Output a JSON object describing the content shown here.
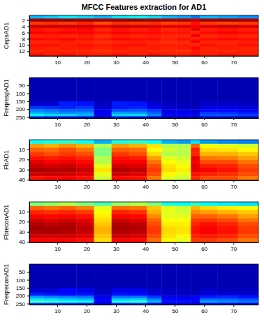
{
  "chart_data": [
    {
      "type": "heatmap",
      "title": "MFCC Features extraction for AD1",
      "ylabel": "CepsAD1",
      "color": "jet",
      "xlim": [
        0.5,
        78.5
      ],
      "xticks": [
        10,
        20,
        30,
        40,
        50,
        60,
        70
      ],
      "ylim": [
        0.5,
        13.5
      ],
      "yticks": [
        2,
        4,
        6,
        8,
        10,
        12
      ],
      "zlim": [
        0,
        1
      ],
      "x_edges": [
        0.5,
        5.5,
        10.5,
        16.5,
        22.5,
        28.5,
        34.5,
        40.5,
        45.5,
        50.5,
        55.5,
        58.5,
        64.5,
        71.5,
        78.5
      ],
      "y_edges": [
        0.5,
        1.5,
        2.5,
        3.5,
        4.5,
        5.5,
        6.5,
        7.5,
        8.5,
        9.5,
        10.5,
        11.5,
        12.5,
        13.5
      ],
      "cells": [
        [
          0.3,
          0.32,
          0.35,
          0.33,
          0.3,
          0.35,
          0.36,
          0.34,
          0.3,
          0.28,
          0.24,
          0.3,
          0.28,
          0.26
        ],
        [
          0.97,
          0.97,
          0.98,
          0.97,
          0.96,
          0.97,
          0.98,
          0.97,
          0.96,
          0.96,
          0.93,
          0.97,
          0.97,
          0.96
        ],
        [
          0.82,
          0.83,
          0.82,
          0.84,
          0.8,
          0.83,
          0.82,
          0.83,
          0.81,
          0.82,
          0.86,
          0.82,
          0.81,
          0.82
        ],
        [
          0.92,
          0.93,
          0.92,
          0.92,
          0.9,
          0.93,
          0.92,
          0.91,
          0.9,
          0.9,
          0.88,
          0.91,
          0.92,
          0.91
        ],
        [
          0.86,
          0.85,
          0.86,
          0.87,
          0.84,
          0.86,
          0.85,
          0.86,
          0.84,
          0.85,
          0.9,
          0.85,
          0.86,
          0.85
        ],
        [
          0.88,
          0.87,
          0.88,
          0.88,
          0.86,
          0.88,
          0.87,
          0.87,
          0.86,
          0.86,
          0.84,
          0.87,
          0.88,
          0.87
        ],
        [
          0.84,
          0.85,
          0.84,
          0.85,
          0.83,
          0.85,
          0.84,
          0.85,
          0.84,
          0.84,
          0.89,
          0.84,
          0.85,
          0.84
        ],
        [
          0.87,
          0.86,
          0.87,
          0.86,
          0.85,
          0.87,
          0.86,
          0.86,
          0.85,
          0.86,
          0.85,
          0.86,
          0.87,
          0.86
        ],
        [
          0.84,
          0.84,
          0.85,
          0.84,
          0.83,
          0.84,
          0.85,
          0.84,
          0.83,
          0.84,
          0.88,
          0.84,
          0.84,
          0.85
        ],
        [
          0.86,
          0.86,
          0.85,
          0.86,
          0.85,
          0.86,
          0.86,
          0.85,
          0.85,
          0.85,
          0.84,
          0.86,
          0.85,
          0.86
        ],
        [
          0.85,
          0.84,
          0.85,
          0.85,
          0.84,
          0.85,
          0.84,
          0.85,
          0.84,
          0.85,
          0.87,
          0.84,
          0.85,
          0.84
        ],
        [
          0.84,
          0.85,
          0.84,
          0.84,
          0.83,
          0.84,
          0.85,
          0.84,
          0.84,
          0.83,
          0.85,
          0.85,
          0.84,
          0.85
        ],
        [
          0.86,
          0.85,
          0.86,
          0.85,
          0.85,
          0.86,
          0.85,
          0.86,
          0.85,
          0.85,
          0.86,
          0.85,
          0.86,
          0.85
        ]
      ]
    },
    {
      "type": "heatmap",
      "ylabel": "FreqrespAD1",
      "color": "jet",
      "xlim": [
        0.5,
        78.5
      ],
      "xticks": [
        10,
        20,
        30,
        40,
        50,
        60,
        70
      ],
      "ylim": [
        0.5,
        256.5
      ],
      "yticks": [
        50,
        100,
        150,
        200,
        250
      ],
      "zlim": [
        0,
        1
      ],
      "x_edges": [
        0.5,
        5.5,
        10.5,
        16.5,
        22.5,
        28.5,
        34.5,
        40.5,
        45.5,
        50.5,
        55.5,
        58.5,
        64.5,
        71.5,
        78.5
      ],
      "y_edges": [
        0.5,
        150.5,
        180.5,
        200.5,
        215.5,
        230.5,
        245.5,
        256.5
      ],
      "cells": [
        [
          0.05,
          0.05,
          0.05,
          0.05,
          0.05,
          0.05,
          0.05,
          0.05,
          0.05,
          0.05,
          0.05,
          0.05,
          0.05,
          0.05
        ],
        [
          0.07,
          0.08,
          0.15,
          0.14,
          0.06,
          0.15,
          0.14,
          0.08,
          0.06,
          0.06,
          0.05,
          0.07,
          0.07,
          0.06
        ],
        [
          0.18,
          0.17,
          0.16,
          0.18,
          0.08,
          0.15,
          0.16,
          0.12,
          0.08,
          0.07,
          0.06,
          0.1,
          0.1,
          0.09
        ],
        [
          0.25,
          0.24,
          0.22,
          0.22,
          0.1,
          0.2,
          0.21,
          0.18,
          0.1,
          0.1,
          0.08,
          0.12,
          0.13,
          0.11
        ],
        [
          0.3,
          0.28,
          0.26,
          0.27,
          0.12,
          0.28,
          0.27,
          0.22,
          0.1,
          0.11,
          0.1,
          0.18,
          0.17,
          0.15
        ],
        [
          0.36,
          0.34,
          0.33,
          0.3,
          0.1,
          0.33,
          0.34,
          0.25,
          0.12,
          0.12,
          0.1,
          0.2,
          0.2,
          0.18
        ],
        [
          0.15,
          0.14,
          0.13,
          0.12,
          0.07,
          0.14,
          0.13,
          0.1,
          0.07,
          0.07,
          0.06,
          0.1,
          0.09,
          0.08
        ]
      ]
    },
    {
      "type": "heatmap",
      "ylabel": "FbAD1",
      "color": "jet",
      "xlim": [
        0.5,
        78.5
      ],
      "xticks": [
        10,
        20,
        30,
        40,
        50,
        60,
        70
      ],
      "ylim": [
        0.5,
        40.5
      ],
      "yticks": [
        10,
        20,
        30,
        40
      ],
      "zlim": [
        0,
        1
      ],
      "x_edges": [
        0.5,
        5.5,
        10.5,
        16.5,
        22.5,
        28.5,
        34.5,
        40.5,
        45.5,
        50.5,
        55.5,
        58.5,
        64.5,
        71.5,
        78.5
      ],
      "y_edges": [
        0.5,
        4.5,
        8.5,
        12.5,
        16.5,
        20.5,
        24.5,
        28.5,
        32.5,
        36.5,
        40.5
      ],
      "cells": [
        [
          0.38,
          0.4,
          0.42,
          0.38,
          0.3,
          0.4,
          0.42,
          0.38,
          0.3,
          0.28,
          0.35,
          0.28,
          0.26,
          0.25
        ],
        [
          0.72,
          0.7,
          0.73,
          0.7,
          0.55,
          0.72,
          0.7,
          0.65,
          0.55,
          0.55,
          0.78,
          0.62,
          0.6,
          0.58
        ],
        [
          0.78,
          0.77,
          0.8,
          0.76,
          0.5,
          0.78,
          0.77,
          0.62,
          0.58,
          0.56,
          0.85,
          0.66,
          0.65,
          0.63
        ],
        [
          0.82,
          0.8,
          0.82,
          0.8,
          0.5,
          0.82,
          0.8,
          0.66,
          0.55,
          0.55,
          0.84,
          0.7,
          0.7,
          0.68
        ],
        [
          0.86,
          0.85,
          0.86,
          0.84,
          0.55,
          0.86,
          0.85,
          0.72,
          0.6,
          0.58,
          0.9,
          0.76,
          0.75,
          0.72
        ],
        [
          0.9,
          0.88,
          0.89,
          0.87,
          0.55,
          0.88,
          0.88,
          0.76,
          0.62,
          0.6,
          0.88,
          0.8,
          0.8,
          0.76
        ],
        [
          0.93,
          0.92,
          0.93,
          0.9,
          0.6,
          0.92,
          0.91,
          0.8,
          0.65,
          0.62,
          0.9,
          0.85,
          0.84,
          0.8
        ],
        [
          0.96,
          0.95,
          0.95,
          0.93,
          0.65,
          0.95,
          0.94,
          0.82,
          0.66,
          0.64,
          0.9,
          0.88,
          0.86,
          0.82
        ],
        [
          0.92,
          0.93,
          0.92,
          0.9,
          0.6,
          0.92,
          0.9,
          0.8,
          0.63,
          0.6,
          0.86,
          0.84,
          0.83,
          0.8
        ],
        [
          0.86,
          0.87,
          0.88,
          0.86,
          0.58,
          0.87,
          0.86,
          0.76,
          0.6,
          0.58,
          0.84,
          0.8,
          0.8,
          0.76
        ]
      ]
    },
    {
      "type": "heatmap",
      "ylabel": "FbreconAD1",
      "color": "jet",
      "xlim": [
        0.5,
        78.5
      ],
      "xticks": [
        10,
        20,
        30,
        40,
        50,
        60,
        70
      ],
      "ylim": [
        0.5,
        40.5
      ],
      "yticks": [
        10,
        20,
        30,
        40
      ],
      "zlim": [
        0,
        1
      ],
      "x_edges": [
        0.5,
        5.5,
        10.5,
        16.5,
        22.5,
        28.5,
        34.5,
        40.5,
        45.5,
        50.5,
        55.5,
        58.5,
        64.5,
        71.5,
        78.5
      ],
      "y_edges": [
        0.5,
        4.5,
        8.5,
        12.5,
        16.5,
        20.5,
        24.5,
        28.5,
        32.5,
        36.5,
        40.5
      ],
      "cells": [
        [
          0.5,
          0.52,
          0.55,
          0.5,
          0.45,
          0.52,
          0.55,
          0.5,
          0.4,
          0.38,
          0.42,
          0.38,
          0.36,
          0.35
        ],
        [
          0.78,
          0.76,
          0.78,
          0.75,
          0.6,
          0.77,
          0.76,
          0.68,
          0.6,
          0.58,
          0.7,
          0.66,
          0.64,
          0.62
        ],
        [
          0.84,
          0.83,
          0.84,
          0.82,
          0.62,
          0.84,
          0.83,
          0.7,
          0.6,
          0.58,
          0.74,
          0.72,
          0.7,
          0.68
        ],
        [
          0.88,
          0.87,
          0.88,
          0.86,
          0.64,
          0.88,
          0.87,
          0.74,
          0.6,
          0.6,
          0.78,
          0.78,
          0.76,
          0.72
        ],
        [
          0.92,
          0.9,
          0.92,
          0.9,
          0.66,
          0.92,
          0.9,
          0.78,
          0.62,
          0.62,
          0.82,
          0.82,
          0.8,
          0.76
        ],
        [
          0.95,
          0.94,
          0.95,
          0.92,
          0.68,
          0.95,
          0.94,
          0.8,
          0.64,
          0.64,
          0.84,
          0.86,
          0.84,
          0.8
        ],
        [
          0.97,
          0.96,
          0.96,
          0.94,
          0.7,
          0.96,
          0.95,
          0.82,
          0.66,
          0.65,
          0.86,
          0.88,
          0.86,
          0.82
        ],
        [
          0.95,
          0.96,
          0.95,
          0.93,
          0.7,
          0.95,
          0.94,
          0.82,
          0.66,
          0.65,
          0.86,
          0.88,
          0.86,
          0.82
        ],
        [
          0.92,
          0.92,
          0.92,
          0.9,
          0.68,
          0.92,
          0.91,
          0.8,
          0.65,
          0.63,
          0.84,
          0.85,
          0.84,
          0.8
        ],
        [
          0.88,
          0.88,
          0.88,
          0.86,
          0.66,
          0.88,
          0.87,
          0.77,
          0.63,
          0.6,
          0.82,
          0.82,
          0.8,
          0.76
        ]
      ]
    },
    {
      "type": "heatmap",
      "ylabel": "FreqreconAD1",
      "color": "jet",
      "xlim": [
        0.5,
        78.5
      ],
      "xticks": [
        10,
        20,
        30,
        40,
        50,
        60,
        70
      ],
      "ylim": [
        0.5,
        256.5
      ],
      "yticks": [
        50,
        100,
        150,
        200,
        250
      ],
      "zlim": [
        0,
        1
      ],
      "x_edges": [
        0.5,
        5.5,
        10.5,
        16.5,
        22.5,
        28.5,
        34.5,
        40.5,
        45.5,
        50.5,
        55.5,
        58.5,
        64.5,
        71.5,
        78.5
      ],
      "y_edges": [
        0.5,
        150.5,
        180.5,
        200.5,
        215.5,
        230.5,
        245.5,
        256.5
      ],
      "cells": [
        [
          0.05,
          0.05,
          0.05,
          0.05,
          0.05,
          0.05,
          0.05,
          0.05,
          0.05,
          0.05,
          0.05,
          0.05,
          0.05,
          0.05
        ],
        [
          0.08,
          0.08,
          0.12,
          0.1,
          0.06,
          0.1,
          0.1,
          0.07,
          0.06,
          0.06,
          0.05,
          0.07,
          0.06,
          0.06
        ],
        [
          0.15,
          0.14,
          0.13,
          0.14,
          0.08,
          0.14,
          0.13,
          0.1,
          0.07,
          0.07,
          0.06,
          0.09,
          0.09,
          0.08
        ],
        [
          0.28,
          0.26,
          0.25,
          0.24,
          0.1,
          0.24,
          0.24,
          0.18,
          0.1,
          0.1,
          0.12,
          0.15,
          0.16,
          0.14
        ],
        [
          0.35,
          0.34,
          0.32,
          0.3,
          0.12,
          0.32,
          0.33,
          0.25,
          0.12,
          0.12,
          0.12,
          0.22,
          0.22,
          0.2
        ],
        [
          0.45,
          0.42,
          0.4,
          0.38,
          0.12,
          0.4,
          0.42,
          0.3,
          0.14,
          0.14,
          0.12,
          0.28,
          0.26,
          0.24
        ],
        [
          0.18,
          0.17,
          0.16,
          0.15,
          0.08,
          0.16,
          0.17,
          0.12,
          0.08,
          0.08,
          0.07,
          0.12,
          0.11,
          0.1
        ]
      ]
    }
  ]
}
